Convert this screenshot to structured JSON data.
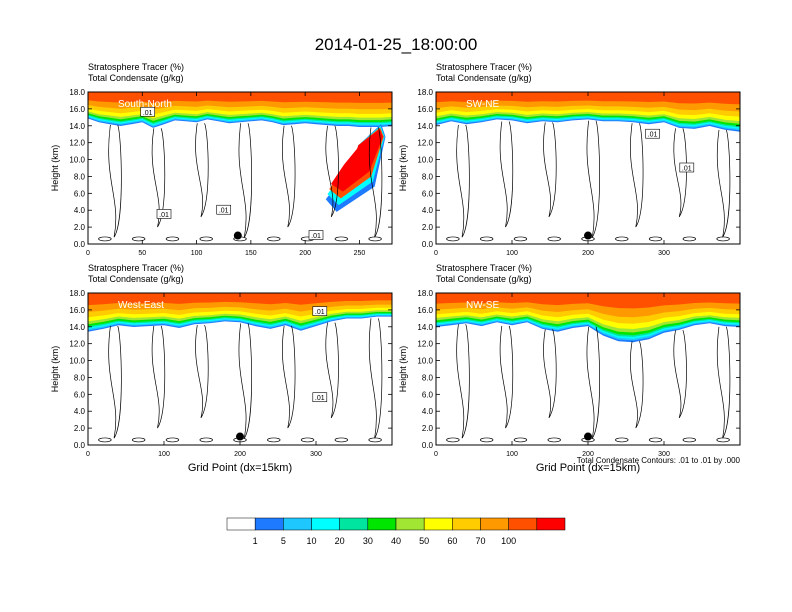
{
  "figure": {
    "title": "2014-01-25_18:00:00",
    "contour_note": "Total Condensate Contours: .01 to .01 by .000"
  },
  "colors": {
    "levels": [
      "#ffffff",
      "#1e7bff",
      "#1ec8ff",
      "#00ffff",
      "#00e6a0",
      "#00e600",
      "#a0e632",
      "#ffff00",
      "#ffcc00",
      "#ff9900",
      "#ff5000",
      "#ff0000"
    ]
  },
  "colorbar": {
    "labels": [
      "1",
      "5",
      "10",
      "20",
      "30",
      "40",
      "50",
      "60",
      "70",
      "100"
    ]
  },
  "chart_data": [
    {
      "type": "heatmap",
      "name": "South-North",
      "title_lines": [
        "Stratosphere Tracer   (%)",
        "Total Condensate   (g/kg)"
      ],
      "ylabel": "Height (km)",
      "xlabel": "",
      "xlim": [
        0,
        280
      ],
      "ylim": [
        0,
        18
      ],
      "xticks": [
        0,
        50,
        100,
        150,
        200,
        250
      ],
      "yticks": [
        "0.0",
        "2.0",
        "4.0",
        "6.0",
        "8.0",
        "10.0",
        "12.0",
        "14.0",
        "16.0",
        "18.0"
      ],
      "tracer_base_km": [
        15.2,
        14.8,
        14.6,
        14.4,
        14.6,
        14.8,
        14.2,
        14.6,
        15.0,
        14.9,
        14.8,
        15.1,
        14.9,
        14.7,
        14.8,
        14.9,
        15.0,
        14.8,
        14.5,
        14.6,
        14.7,
        14.6,
        14.5,
        14.4,
        14.4,
        14.3,
        14.3,
        14.3,
        14.4
      ],
      "intrusion": {
        "present": true,
        "x_range": [
          225,
          270
        ],
        "bottom_km": 3.8,
        "top_km": 14.2
      },
      "contour_labels": [
        {
          "text": ".01",
          "x": 70,
          "y": 3.5
        },
        {
          "text": ".01",
          "x": 125,
          "y": 4.0
        },
        {
          "text": ".01",
          "x": 210,
          "y": 1.0
        },
        {
          "text": ".01",
          "x": 55,
          "y": 15.6
        }
      ],
      "marker": {
        "x": 138,
        "y": 1.0
      }
    },
    {
      "type": "heatmap",
      "name": "SW-NE",
      "title_lines": [
        "Stratosphere Tracer   (%)",
        "Total Condensate   (g/kg)"
      ],
      "ylabel": "Height (km)",
      "xlabel": "",
      "xlim": [
        0,
        400
      ],
      "ylim": [
        0,
        18
      ],
      "xticks": [
        0,
        100,
        200,
        300
      ],
      "yticks": [
        "0.0",
        "2.0",
        "4.0",
        "6.0",
        "8.0",
        "10.0",
        "12.0",
        "14.0",
        "16.0",
        "18.0"
      ],
      "tracer_base_km": [
        14.5,
        14.9,
        14.6,
        14.8,
        15.1,
        15.0,
        14.7,
        14.9,
        14.8,
        15.0,
        15.1,
        14.9,
        14.9,
        14.8,
        14.6,
        14.8,
        14.2,
        14.1,
        14.4,
        14.0,
        13.8
      ],
      "intrusion": {
        "present": false
      },
      "contour_labels": [
        {
          "text": ".01",
          "x": 285,
          "y": 13.0
        },
        {
          "text": ".01",
          "x": 330,
          "y": 9.0
        }
      ],
      "marker": {
        "x": 200,
        "y": 1.0
      }
    },
    {
      "type": "heatmap",
      "name": "West-East",
      "title_lines": [
        "Stratosphere Tracer   (%)",
        "Total Condensate   (g/kg)"
      ],
      "ylabel": "Height (km)",
      "xlabel": "Grid Point (dx=15km)",
      "xlim": [
        0,
        400
      ],
      "ylim": [
        0,
        18
      ],
      "xticks": [
        0,
        100,
        200,
        300
      ],
      "yticks": [
        "0.0",
        "2.0",
        "4.0",
        "6.0",
        "8.0",
        "10.0",
        "12.0",
        "14.0",
        "16.0",
        "18.0"
      ],
      "tracer_base_km": [
        13.9,
        14.2,
        14.6,
        14.4,
        14.5,
        14.6,
        14.3,
        14.7,
        14.8,
        15.0,
        14.9,
        14.5,
        14.2,
        14.6,
        14.0,
        14.5,
        15.0,
        15.3,
        15.3,
        15.5,
        15.5
      ],
      "intrusion": {
        "present": false
      },
      "contour_labels": [
        {
          "text": ".01",
          "x": 305,
          "y": 15.8
        },
        {
          "text": ".01",
          "x": 305,
          "y": 5.6
        }
      ],
      "marker": {
        "x": 200,
        "y": 1.0
      }
    },
    {
      "type": "heatmap",
      "name": "NW-SE",
      "title_lines": [
        "Stratosphere Tracer   (%)",
        "Total Condensate   (g/kg)"
      ],
      "ylabel": "Height (km)",
      "xlabel": "Grid Point (dx=15km)",
      "xlim": [
        0,
        400
      ],
      "ylim": [
        0,
        18
      ],
      "xticks": [
        0,
        100,
        200,
        300
      ],
      "yticks": [
        "0.0",
        "2.0",
        "4.0",
        "6.0",
        "8.0",
        "10.0",
        "12.0",
        "14.0",
        "16.0",
        "18.0"
      ],
      "tracer_base_km": [
        14.4,
        14.6,
        14.8,
        14.5,
        14.9,
        14.6,
        14.9,
        14.2,
        13.9,
        14.3,
        14.5,
        13.5,
        12.9,
        12.8,
        13.1,
        13.8,
        14.1,
        14.6,
        14.8,
        14.5,
        14.4
      ],
      "intrusion": {
        "present": false
      },
      "contour_labels": [],
      "marker": {
        "x": 200,
        "y": 1.0
      }
    }
  ]
}
